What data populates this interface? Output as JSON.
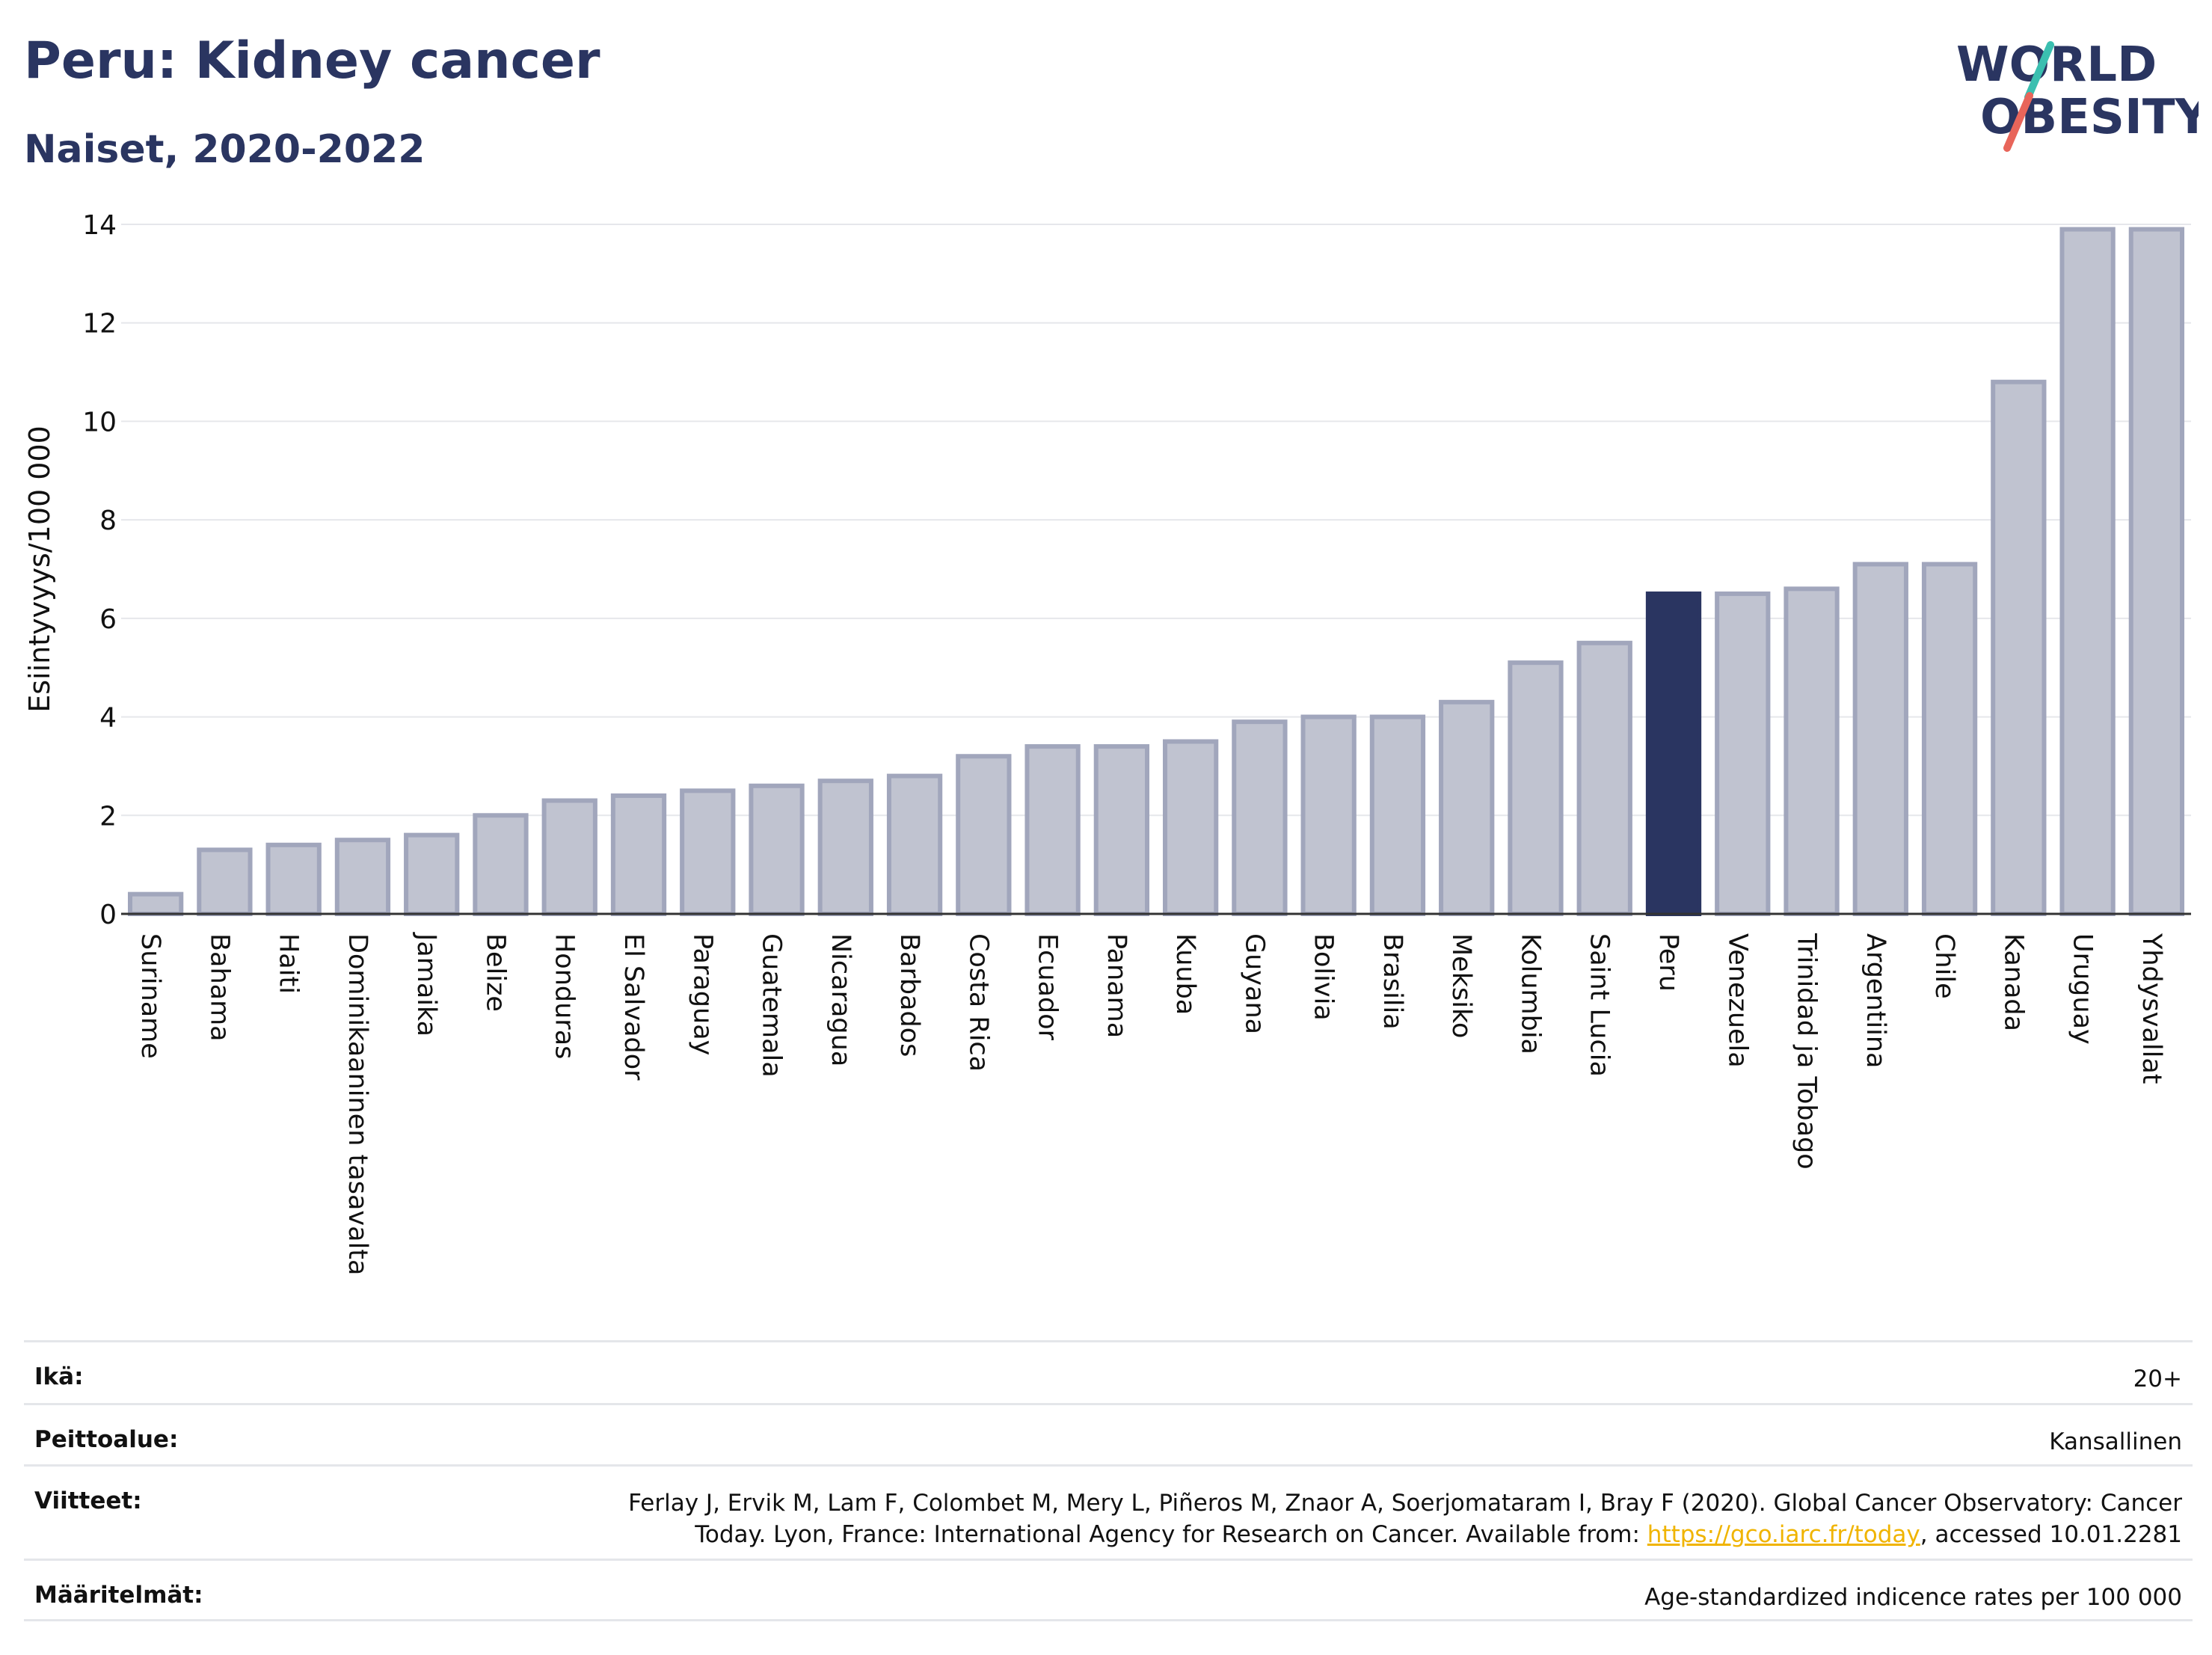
{
  "header": {
    "title": "Peru: Kidney cancer",
    "subtitle": "Naiset, 2020-2022"
  },
  "logo": {
    "line1": "WORLD",
    "line2": "OBESITY",
    "colors": {
      "text": "#2a3561",
      "slash_top": "#3bbfb0",
      "slash_bottom": "#e8655a"
    }
  },
  "chart_data": {
    "type": "bar",
    "ylabel": "Esiintyvyys/100 000",
    "xlabel": "",
    "ylim": [
      0,
      14
    ],
    "yticks": [
      0,
      2,
      4,
      6,
      8,
      10,
      12,
      14
    ],
    "grid": true,
    "highlight": "Peru",
    "colors": {
      "bar": "#c0c3d0",
      "bar_border": "#a1a6bc",
      "highlight": "#2a3561",
      "grid": "#e6e7eb"
    },
    "categories": [
      "Suriname",
      "Bahama",
      "Haiti",
      "Dominikaaninen tasavalta",
      "Jamaika",
      "Belize",
      "Honduras",
      "El Salvador",
      "Paraguay",
      "Guatemala",
      "Nicaragua",
      "Barbados",
      "Costa Rica",
      "Ecuador",
      "Panama",
      "Kuuba",
      "Guyana",
      "Bolivia",
      "Brasilia",
      "Meksiko",
      "Kolumbia",
      "Saint Lucia",
      "Peru",
      "Venezuela",
      "Trinidad ja Tobago",
      "Argentiina",
      "Chile",
      "Kanada",
      "Uruguay",
      "Yhdysvallat"
    ],
    "values": [
      0.4,
      1.3,
      1.4,
      1.5,
      1.6,
      2.0,
      2.3,
      2.4,
      2.5,
      2.6,
      2.7,
      2.8,
      3.2,
      3.4,
      3.4,
      3.5,
      3.9,
      4.0,
      4.0,
      4.3,
      5.1,
      5.5,
      6.5,
      6.5,
      6.6,
      7.1,
      7.1,
      10.8,
      13.9,
      13.9
    ]
  },
  "meta": {
    "age_label": "Ikä:",
    "age_value": "20+",
    "coverage_label": "Peittoalue:",
    "coverage_value": "Kansallinen",
    "refs_label": "Viitteet:",
    "refs_line1": "Ferlay J, Ervik M, Lam F, Colombet M, Mery L, Piñeros M, Znaor A, Soerjomataram I, Bray F (2020). Global Cancer Observatory: Cancer",
    "refs_line2_pre": "Today. Lyon, France: International Agency for Research on Cancer. Available from: ",
    "refs_link": "https://gco.iarc.fr/today",
    "refs_line2_post": ", accessed 10.01.2281",
    "defs_label": "Määritelmät:",
    "defs_value": "Age-standardized indicence rates per 100 000"
  }
}
